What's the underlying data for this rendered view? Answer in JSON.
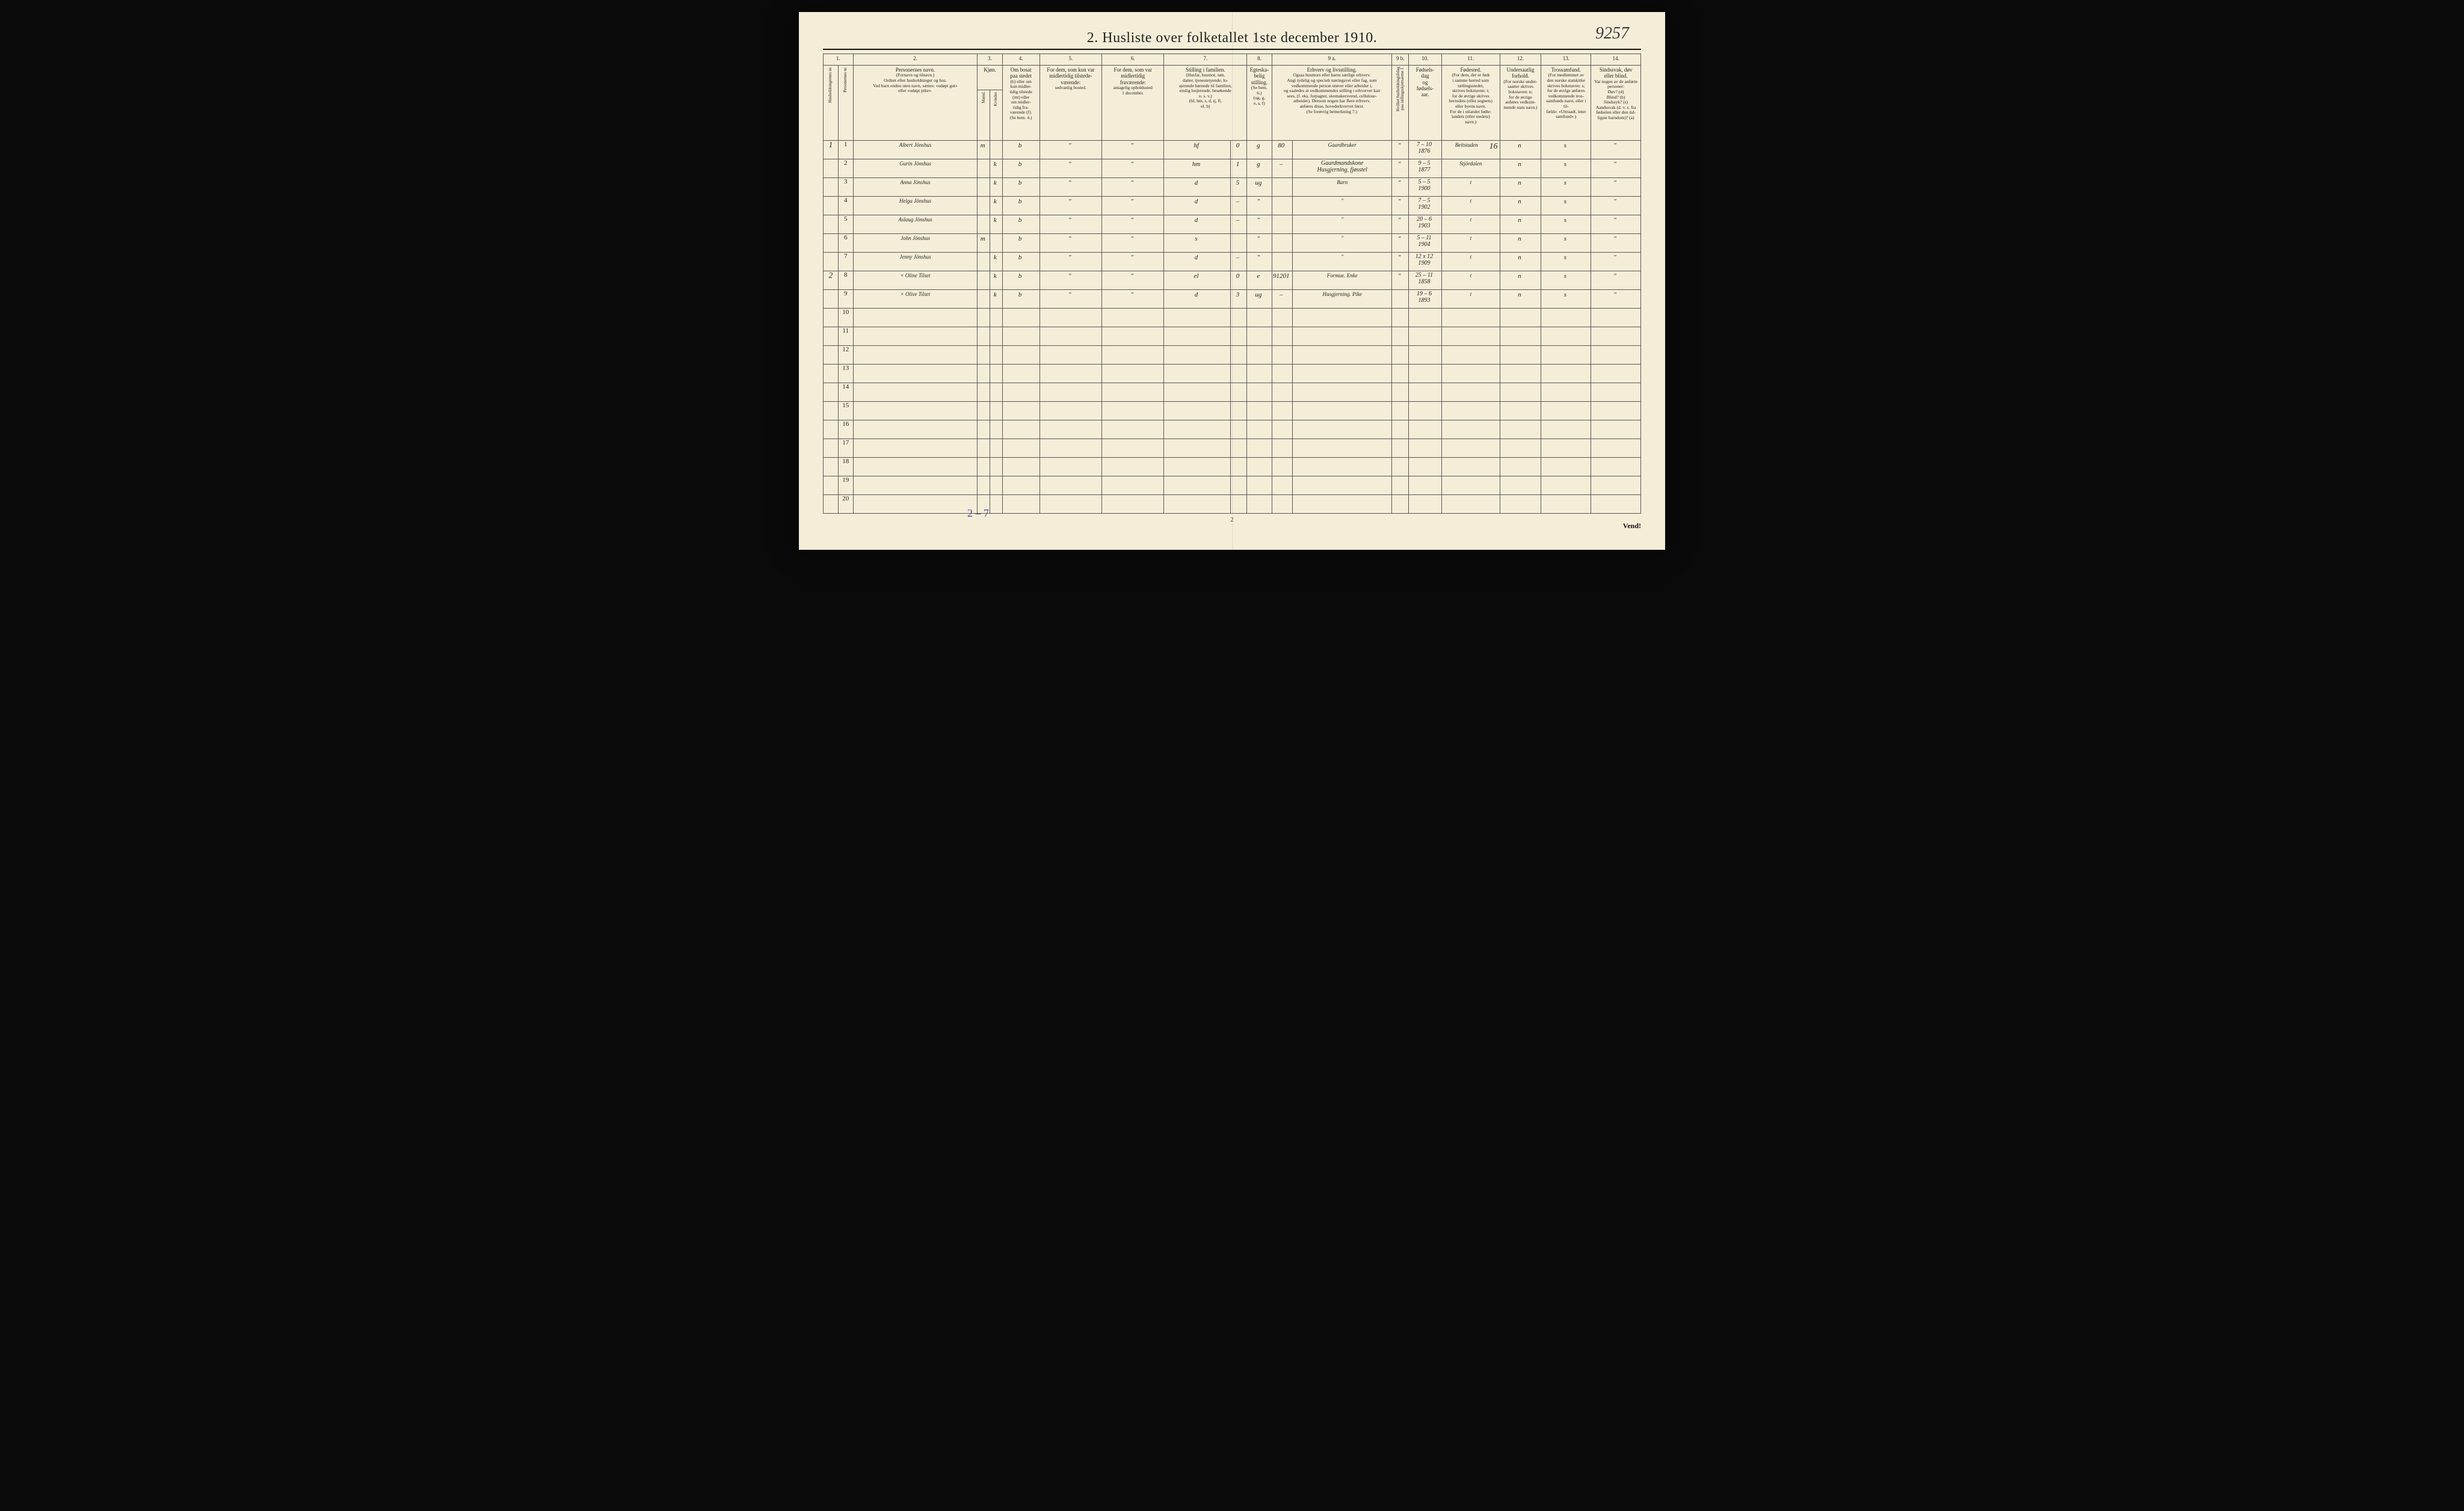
{
  "title": "2.  Husliste over folketallet 1ste december 1910.",
  "handwritten_top_right": "9257",
  "columns": {
    "numbers": [
      "1.",
      "",
      "2.",
      "3.",
      "",
      "4.",
      "5.",
      "6.",
      "7.",
      "",
      "8.",
      "",
      "9 a.",
      "9 b.",
      "10.",
      "11.",
      "12.",
      "13.",
      "14."
    ],
    "h1_rot": "Husholdningernes nr.",
    "h2_rot": "Personernes nr.",
    "h3": {
      "main": "Personernes navn.",
      "sub": "(Fornavn og tilnavn.)\nOrdnet efter husholdninger og hus.\nVed barn endnu uten navn, sættes: «udøpt gut»\neller «udøpt pike»."
    },
    "h4": {
      "main": "Kjøn.",
      "sub_m": "Mænd.",
      "sub_k": "Kvinder.",
      "foot": "m.  k."
    },
    "h5": {
      "main": "Om bosat\npaa stedet",
      "sub": "(b) eller om\nkun midler-\ntidig tilstede\n(mt) eller\nom midler-\ntidig fra-\nværende (f).\n(Se bem. 4.)"
    },
    "h6": {
      "main": "For dem, som kun var\nmidlertidig tilstede-\nværende:",
      "sub": "sedvanlig bosted."
    },
    "h7": {
      "main": "For dem, som var\nmidlertidig\nfraværende:",
      "sub": "antagelig opholdssted\n1 december."
    },
    "h8": {
      "main": "Stilling i familien.",
      "sub": "(Husfar, husmor, søn,\ndatter, tjenestetyende, lo-\nsjerende hørende til familien,\nenslig losjerende, besøkende\no. s. v.)\n(hf, hm, s, d, tj, fl,\nel, b)"
    },
    "h9": {
      "main": "Egteska-\nbelig\nstilling.",
      "sub": "(Se bem. 6.)\n(ug, g,\ne, s, f)"
    },
    "h10": {
      "main": "Erhverv og livsstilling.",
      "sub": "Ogsaa husmors eller barns særlige erhverv.\nAngi tydelig og specielt næringsvei eller fag, som\nvedkommende person utøver eller arbeider i,\nog saaledes at vedkommendes stilling i erhvervet kan\nsees, (f. eks. forpagter, skomakersvend, cellulose-\narbeider). Dersom nogen har flere erhverv,\nanføres disse, hovederkvervet først.\n(Se forøvrig bemerkning 7.)"
    },
    "h10b_rot": "Hvilket husholdningsfelag\npaa tællingsskjemaerne 1",
    "h11": {
      "main": "Fødsels-\ndag\nog\nfødsels-\naar."
    },
    "h12": {
      "main": "Fødested.",
      "sub": "(For dem, der er født\ni samme herred som\ntællingsstedet,\nskrives bokstaven: t;\nfor de øvrige skrives\nherredets (eller sognets)\neller byens navn.\nFor de i utlandet fødte:\nlandets (eller stedets)\nnavn.)"
    },
    "h13": {
      "main": "Undersaatlig\nforhold.",
      "sub": "(For norske under-\nsaatter skrives\nbokstaven: n;\nfor de øvrige\nanføres vedkom-\nmende stats navn.)"
    },
    "h14": {
      "main": "Trossamfund.",
      "sub": "(For medlemmer av\nden norske statskirke\nskrives bokstaven: s;\nfor de øvrige anføres\nvedkommende tros-\nsamfunds navn, eller i til-\nfælde: «Uttraadt, intet\nsamfund».)"
    },
    "h15": {
      "main": "Sindssvak, døv\neller blind.",
      "sub": "Var nogen av de anførte\npersoner:\nDøv?        (d)\nBlind?      (b)\nSindssyk?  (s)\nAandssvak (d. v. s. fra\nfødselen eller den tid-\nligste barndom)?  (a)"
    }
  },
  "rows": [
    {
      "hh": "1",
      "nr": "1",
      "navn": "Albert Jönshus",
      "m": "m",
      "k": "",
      "bosat": "b",
      "tilst": "\"",
      "frav": "\"",
      "stilling": "hf",
      "fam_n": "0",
      "egt": "g",
      "erhv_kode": "80",
      "erhverv": "Gaardbruker",
      "hl": "\"",
      "foed": "7 – 10\n1876",
      "sted": "Beitstaden",
      "und": "n",
      "tro": "s",
      "sind": "\""
    },
    {
      "hh": "",
      "nr": "2",
      "navn": "Gurin Jönshus",
      "m": "",
      "k": "k",
      "bosat": "b",
      "tilst": "\"",
      "frav": "\"",
      "stilling": "hm",
      "fam_n": "1",
      "egt": "g",
      "erhv_kode": "–",
      "erhverv": "Gaardmandskone\nHusgjerning, fjøsstel",
      "hl": "\"",
      "foed": "9 – 5\n1877",
      "sted": "Stjördalen",
      "und": "n",
      "tro": "s",
      "sind": "\""
    },
    {
      "hh": "",
      "nr": "3",
      "navn": "Anna Jönshus",
      "m": "",
      "k": "k",
      "bosat": "b",
      "tilst": "\"",
      "frav": "\"",
      "stilling": "d",
      "fam_n": "5",
      "egt": "ug",
      "erhv_kode": "",
      "erhverv": "Barn",
      "hl": "\"",
      "foed": "5 – 5\n1900",
      "sted": "t",
      "und": "n",
      "tro": "s",
      "sind": "\""
    },
    {
      "hh": "",
      "nr": "4",
      "navn": "Helga Jönshus",
      "m": "",
      "k": "k",
      "bosat": "b",
      "tilst": "\"",
      "frav": "\"",
      "stilling": "d",
      "fam_n": "–",
      "egt": "\"",
      "erhv_kode": "",
      "erhverv": "\"",
      "hl": "\"",
      "foed": "7 – 5\n1902",
      "sted": "t",
      "und": "n",
      "tro": "s",
      "sind": "\""
    },
    {
      "hh": "",
      "nr": "5",
      "navn": "Aslaug Jönshus",
      "m": "",
      "k": "k",
      "bosat": "b",
      "tilst": "\"",
      "frav": "\"",
      "stilling": "d",
      "fam_n": "–",
      "egt": "\"",
      "erhv_kode": "",
      "erhverv": "\"",
      "hl": "\"",
      "foed": "20 – 6\n1903",
      "sted": "t",
      "und": "n",
      "tro": "s",
      "sind": "\""
    },
    {
      "hh": "",
      "nr": "6",
      "navn": "John Jönshus",
      "m": "m",
      "k": "",
      "bosat": "b",
      "tilst": "\"",
      "frav": "\"",
      "stilling": "s",
      "fam_n": "",
      "egt": "\"",
      "erhv_kode": "",
      "erhverv": "\"",
      "hl": "\"",
      "foed": "5 – 11\n1904",
      "sted": "t",
      "und": "n",
      "tro": "s",
      "sind": "\""
    },
    {
      "hh": "",
      "nr": "7",
      "navn": "Jenny Jönshus",
      "m": "",
      "k": "k",
      "bosat": "b",
      "tilst": "\"",
      "frav": "\"",
      "stilling": "d",
      "fam_n": "–",
      "egt": "\"",
      "erhv_kode": "",
      "erhverv": "\"",
      "hl": "\"",
      "foed": "12 x 12\n1909",
      "sted": "t",
      "und": "n",
      "tro": "s",
      "sind": "\""
    },
    {
      "hh": "2",
      "nr": "8",
      "navn": "× Oline Tilset",
      "m": "",
      "k": "k",
      "bosat": "b",
      "tilst": "\"",
      "frav": "\"",
      "stilling": "el",
      "fam_n": "0",
      "egt": "e",
      "erhv_kode": "91201",
      "erhverv": "Formue. Enke",
      "hl": "\"",
      "foed": "25 – 11\n1858",
      "sted": "t",
      "und": "n",
      "tro": "s",
      "sind": "\""
    },
    {
      "hh": "",
      "nr": "9",
      "navn": "× Olive Tilset",
      "m": "",
      "k": "k",
      "bosat": "b",
      "tilst": "\"",
      "frav": "\"",
      "stilling": "d",
      "fam_n": "3",
      "egt": "ug",
      "erhv_kode": "–",
      "erhverv": "Husgjerning. Pike",
      "hl": "",
      "foed": "19 – 6\n1893",
      "sted": "t",
      "und": "n",
      "tro": "s",
      "sind": "\""
    }
  ],
  "blank_row_numbers": [
    "10",
    "11",
    "12",
    "13",
    "14",
    "15",
    "16",
    "17",
    "18",
    "19",
    "20"
  ],
  "page_number_16": "16",
  "footer_note": "2 – 7",
  "page_bottom": "2",
  "vend": "Vend!",
  "styling": {
    "paper_color": "#f4eed8",
    "ink_color": "#222222",
    "handwriting_color": "#333333",
    "pencil_color": "#4a4a9a",
    "rule_color": "#555555",
    "title_fontsize": 24,
    "header_fontsize": 9,
    "subheader_fontsize": 7.5,
    "body_fontsize": 13,
    "rownum_fontsize": 11
  }
}
